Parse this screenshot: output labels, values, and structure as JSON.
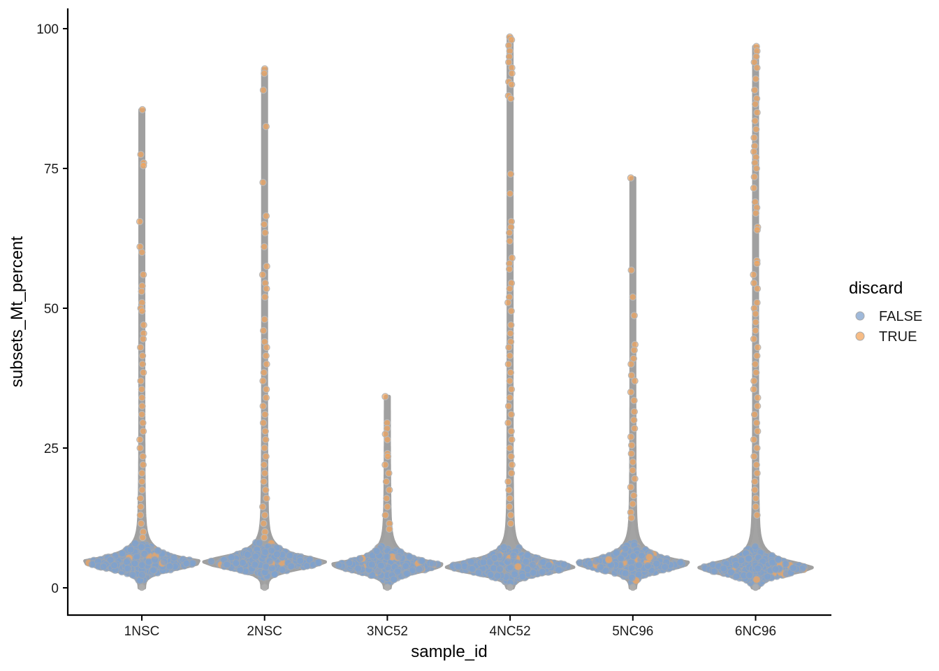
{
  "chart_data": {
    "type": "violin",
    "xlabel": "sample_id",
    "ylabel": "subsets_Mt_percent",
    "categories": [
      "1NSC",
      "2NSC",
      "3NC52",
      "4NC52",
      "5NC96",
      "6NC96"
    ],
    "ylim": [
      -4.5,
      103.5
    ],
    "yticks": [
      0,
      25,
      50,
      75,
      100
    ],
    "grid": false,
    "legend": {
      "title": "discard",
      "placement": "right",
      "entries": [
        {
          "label": "FALSE",
          "color": "#7fa1ce"
        },
        {
          "label": "TRUE",
          "color": "#f4a55c"
        }
      ]
    },
    "violin_outline_color": "#a0a0a0",
    "violins": [
      {
        "category": "1NSC",
        "max": 85.5,
        "mode": 4.7,
        "lower_min": 0,
        "discard_threshold": 8.5,
        "outliers": [
          85.5,
          77.5,
          76.0,
          75.5,
          65.5,
          61.0,
          60.0,
          56.0,
          54.0,
          53.0,
          51.0,
          50.0,
          49.5,
          47.0,
          45.5,
          44.5,
          43.0,
          41.5,
          40.0,
          38.5,
          37.0,
          35.5,
          34.0,
          32.5,
          31.0,
          29.5,
          28.0,
          26.5,
          25.0,
          23.5,
          22.0,
          20.5,
          19.0,
          17.5,
          16.0,
          14.5,
          13.0,
          11.5,
          10.0,
          9.0
        ]
      },
      {
        "category": "2NSC",
        "max": 92.8,
        "mode": 4.8,
        "lower_min": 0,
        "discard_threshold": 8.5,
        "outliers": [
          92.8,
          92.0,
          89.0,
          82.5,
          72.5,
          66.5,
          65.0,
          63.5,
          61.0,
          57.5,
          56.0,
          54.5,
          53.5,
          52.0,
          48.0,
          46.0,
          44.0,
          43.0,
          41.5,
          40.0,
          38.5,
          37.0,
          35.5,
          34.0,
          32.5,
          31.0,
          29.5,
          28.0,
          26.5,
          25.0,
          23.5,
          22.0,
          20.5,
          19.0,
          17.5,
          16.0,
          14.5,
          13.0,
          11.5,
          10.0,
          9.0
        ]
      },
      {
        "category": "3NC52",
        "max": 34.2,
        "mode": 4.2,
        "lower_min": 0,
        "discard_threshold": 10,
        "outliers": [
          34.2,
          29.5,
          28.5,
          27.5,
          26.5,
          24.0,
          23.5,
          22.0,
          20.5,
          19.0,
          17.5,
          16.0,
          14.5,
          13.0,
          11.5,
          10.5
        ]
      },
      {
        "category": "4NC52",
        "max": 98.5,
        "mode": 4.0,
        "lower_min": 0,
        "discard_threshold": 11,
        "outliers": [
          98.5,
          98.0,
          97.0,
          96.0,
          95.0,
          94.0,
          93.0,
          92.0,
          90.5,
          90.0,
          88.0,
          87.5,
          74.0,
          70.5,
          65.5,
          64.5,
          63.5,
          62.0,
          59.0,
          58.0,
          57.0,
          54.5,
          53.5,
          52.0,
          51.0,
          49.5,
          47.0,
          45.5,
          44.0,
          43.0,
          41.5,
          40.0,
          38.5,
          37.0,
          35.5,
          34.0,
          32.5,
          31.0,
          29.5,
          28.0,
          26.5,
          25.0,
          23.5,
          22.0,
          20.5,
          19.0,
          17.5,
          16.0,
          14.5,
          13.0,
          11.5
        ]
      },
      {
        "category": "5NC96",
        "max": 73.3,
        "mode": 4.5,
        "lower_min": 0,
        "discard_threshold": 12,
        "outliers": [
          73.3,
          56.8,
          52.0,
          48.7,
          43.5,
          42.5,
          41.0,
          40.0,
          38.0,
          37.0,
          35.0,
          33.5,
          31.5,
          30.0,
          28.5,
          27.0,
          25.5,
          24.0,
          22.5,
          21.0,
          19.5,
          18.0,
          16.5,
          15.0,
          13.5,
          12.5
        ]
      },
      {
        "category": "6NC96",
        "max": 96.8,
        "mode": 3.8,
        "lower_min": 0,
        "discard_threshold": 12,
        "outliers": [
          96.8,
          96.0,
          95.0,
          94.0,
          93.0,
          91.0,
          89.0,
          87.5,
          86.5,
          85.0,
          83.5,
          82.0,
          80.5,
          79.0,
          78.0,
          77.0,
          76.0,
          75.0,
          73.5,
          71.5,
          69.0,
          68.0,
          67.0,
          64.5,
          64.0,
          58.5,
          58.0,
          56.0,
          54.5,
          53.5,
          51.0,
          50.0,
          49.0,
          47.5,
          46.0,
          44.5,
          43.0,
          41.5,
          40.0,
          38.5,
          37.0,
          35.5,
          34.0,
          32.5,
          31.0,
          29.5,
          28.0,
          26.5,
          25.0,
          23.5,
          22.0,
          20.5,
          19.0,
          17.5,
          16.0,
          14.5,
          13.0
        ]
      }
    ]
  }
}
